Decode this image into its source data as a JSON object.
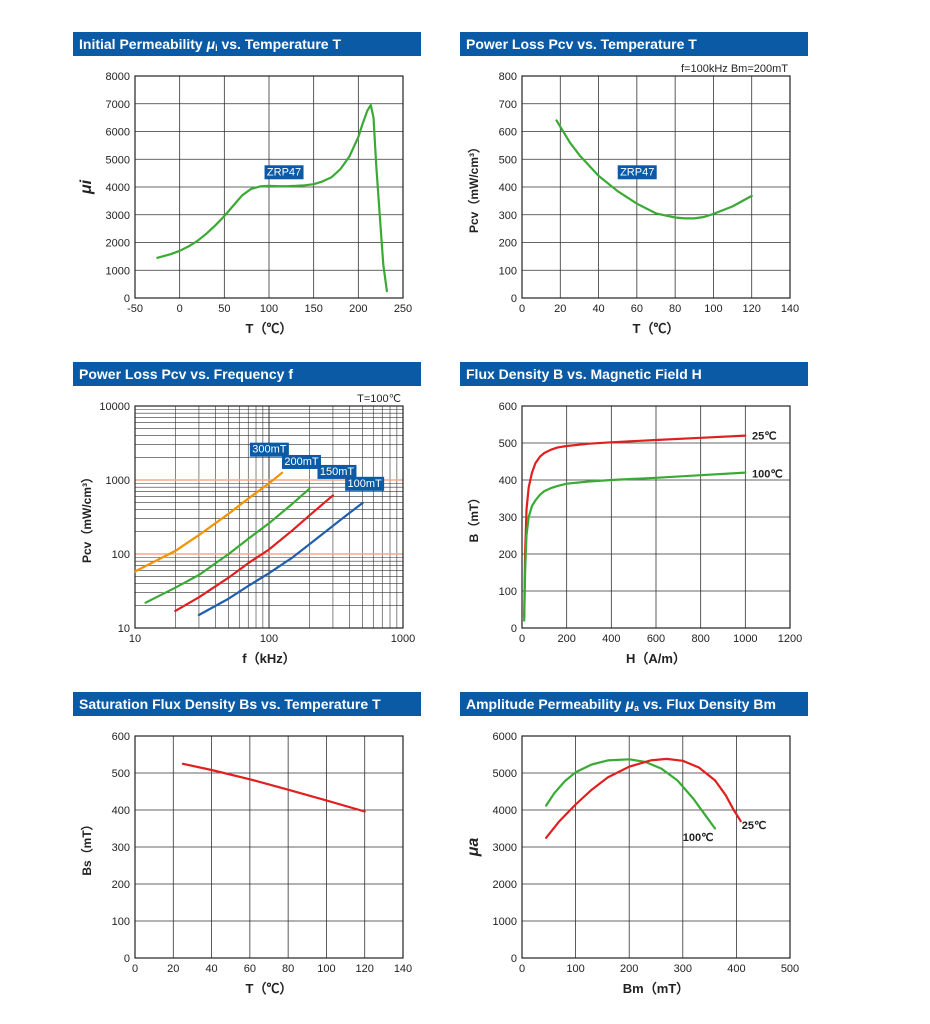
{
  "colors": {
    "header_bg": "#0a5aa6",
    "green": "#3aaa35",
    "red": "#e02020",
    "orange": "#f39200",
    "blue": "#1f5fae",
    "grid": "#333333",
    "ref_line": "#f5a58a"
  },
  "chart_data": [
    {
      "id": "perm_temp",
      "type": "line",
      "title_parts": [
        {
          "text": "Initial Permeability ",
          "style": "normal"
        },
        {
          "text": "μ",
          "style": "italic-bold"
        },
        {
          "text": "i",
          "style": "sub"
        },
        {
          "text": " vs. Temperature ",
          "style": "normal"
        },
        {
          "text": "T",
          "style": "bold"
        }
      ],
      "xlabel": "T（℃）",
      "ylabel": "μi",
      "xlim": [
        -50,
        250
      ],
      "ylim": [
        0,
        8000
      ],
      "xticks": [
        -50,
        0,
        50,
        100,
        150,
        200,
        250
      ],
      "yticks": [
        0,
        1000,
        2000,
        3000,
        4000,
        5000,
        6000,
        7000,
        8000
      ],
      "grid": true,
      "series": [
        {
          "name": "ZRP47",
          "color": "#3aaa35",
          "x": [
            -25,
            -10,
            0,
            10,
            20,
            30,
            40,
            50,
            60,
            70,
            80,
            90,
            100,
            110,
            120,
            130,
            140,
            150,
            160,
            170,
            180,
            190,
            200,
            205,
            210,
            214,
            217,
            220,
            225,
            228,
            232
          ],
          "y": [
            1450,
            1580,
            1700,
            1860,
            2060,
            2320,
            2620,
            2950,
            3330,
            3700,
            3930,
            4020,
            4040,
            4030,
            4030,
            4040,
            4060,
            4100,
            4200,
            4350,
            4650,
            5100,
            5800,
            6300,
            6750,
            6950,
            6500,
            4800,
            2500,
            1200,
            250
          ]
        }
      ],
      "annotations": [
        {
          "text": "ZRP47",
          "x": 95,
          "y": 4350
        }
      ]
    },
    {
      "id": "loss_temp",
      "type": "line",
      "title_parts": [
        {
          "text": "Power Loss ",
          "style": "normal"
        },
        {
          "text": "Pcv",
          "style": "bold"
        },
        {
          "text": " vs. Temperature ",
          "style": "normal"
        },
        {
          "text": "T",
          "style": "bold"
        }
      ],
      "subtitle": "f=100kHz    Bm=200mT",
      "xlabel": "T（℃）",
      "ylabel": "Pcv（mW/cm³）",
      "xlim": [
        0,
        140
      ],
      "ylim": [
        0,
        800
      ],
      "xticks": [
        0,
        20,
        40,
        60,
        80,
        100,
        120,
        140
      ],
      "yticks": [
        0,
        100,
        200,
        300,
        400,
        500,
        600,
        700,
        800
      ],
      "grid": true,
      "series": [
        {
          "name": "ZRP47",
          "color": "#3aaa35",
          "x": [
            18,
            25,
            30,
            40,
            50,
            60,
            70,
            80,
            85,
            90,
            95,
            100,
            110,
            120
          ],
          "y": [
            640,
            560,
            515,
            440,
            385,
            340,
            305,
            290,
            287,
            287,
            292,
            303,
            330,
            368
          ]
        }
      ],
      "annotations": [
        {
          "text": "ZRP47",
          "x": 50,
          "y": 435
        }
      ]
    },
    {
      "id": "loss_freq",
      "type": "line",
      "log_x": true,
      "log_y": true,
      "title_parts": [
        {
          "text": "Power Loss ",
          "style": "normal"
        },
        {
          "text": "Pcv",
          "style": "bold"
        },
        {
          "text": " vs. Frequency ",
          "style": "normal"
        },
        {
          "text": "f",
          "style": "bold"
        }
      ],
      "subtitle": "T=100℃",
      "xlabel_parts": [
        {
          "text": "f",
          "style": "bold"
        },
        {
          "text": "（kHz）",
          "style": "normal"
        }
      ],
      "ylabel": "Pcv（mW/cm³）",
      "xlim": [
        10,
        1000
      ],
      "ylim": [
        10,
        10000
      ],
      "xticks": [
        10,
        100,
        1000
      ],
      "yticks": [
        10,
        100,
        1000,
        10000
      ],
      "reference_lines_y": [
        100,
        1000
      ],
      "grid": true,
      "series": [
        {
          "name": "300mT",
          "color": "#f39200",
          "x": [
            10,
            20,
            30,
            50,
            70,
            100,
            125
          ],
          "y": [
            58,
            110,
            180,
            350,
            560,
            900,
            1250
          ]
        },
        {
          "name": "200mT",
          "color": "#3aaa35",
          "x": [
            12,
            20,
            30,
            50,
            70,
            100,
            150,
            200
          ],
          "y": [
            22,
            35,
            52,
            100,
            160,
            260,
            480,
            760
          ]
        },
        {
          "name": "150mT",
          "color": "#e02020",
          "x": [
            20,
            30,
            50,
            70,
            100,
            150,
            200,
            300
          ],
          "y": [
            17,
            26,
            48,
            75,
            115,
            210,
            330,
            620
          ]
        },
        {
          "name": "100mT",
          "color": "#1f5fae",
          "x": [
            30,
            50,
            70,
            100,
            150,
            200,
            300,
            400,
            500
          ],
          "y": [
            15,
            25,
            37,
            55,
            90,
            135,
            240,
            360,
            490
          ]
        }
      ],
      "annotations": [
        {
          "text": "300mT",
          "x": 72,
          "y": 2200
        },
        {
          "text": "200mT",
          "x": 125,
          "y": 1500
        },
        {
          "text": "150mT",
          "x": 230,
          "y": 1100
        },
        {
          "text": "100mT",
          "x": 370,
          "y": 760
        }
      ]
    },
    {
      "id": "flux_field",
      "type": "line",
      "title_parts": [
        {
          "text": "Flux Density ",
          "style": "normal"
        },
        {
          "text": "B",
          "style": "bold"
        },
        {
          "text": " vs. Magnetic Field ",
          "style": "normal"
        },
        {
          "text": "H",
          "style": "bold"
        }
      ],
      "xlabel": "H（A/m）",
      "ylabel": "B（mT）",
      "xlim": [
        0,
        1200
      ],
      "ylim": [
        0,
        600
      ],
      "xticks": [
        0,
        200,
        400,
        600,
        800,
        1000,
        1200
      ],
      "yticks": [
        0,
        100,
        200,
        300,
        400,
        500,
        600
      ],
      "grid": true,
      "series": [
        {
          "name": "25℃",
          "color": "#e02020",
          "x": [
            10,
            14,
            20,
            30,
            45,
            60,
            80,
            100,
            130,
            160,
            200,
            300,
            400,
            600,
            800,
            1000
          ],
          "y": [
            30,
            200,
            320,
            380,
            420,
            445,
            463,
            473,
            482,
            488,
            492,
            498,
            502,
            508,
            514,
            520
          ]
        },
        {
          "name": "100℃",
          "color": "#3aaa35",
          "x": [
            10,
            14,
            20,
            30,
            45,
            60,
            80,
            100,
            130,
            160,
            200,
            300,
            400,
            600,
            800,
            1000
          ],
          "y": [
            20,
            150,
            250,
            300,
            330,
            345,
            360,
            370,
            378,
            384,
            390,
            396,
            400,
            406,
            413,
            420
          ]
        }
      ],
      "annotations": [
        {
          "text": "25℃",
          "x": 1030,
          "y": 520
        },
        {
          "text": "100℃",
          "x": 1030,
          "y": 418
        }
      ]
    },
    {
      "id": "bs_temp",
      "type": "line",
      "title_parts": [
        {
          "text": "Saturation Flux Density ",
          "style": "normal"
        },
        {
          "text": "Bs",
          "style": "bold"
        },
        {
          "text": " vs. Temperature ",
          "style": "normal"
        },
        {
          "text": "T",
          "style": "bold"
        }
      ],
      "xlabel": "T（℃）",
      "ylabel": "Bs（mT）",
      "xlim": [
        0,
        140
      ],
      "ylim": [
        0,
        600
      ],
      "xticks": [
        0,
        20,
        40,
        60,
        80,
        100,
        120,
        140
      ],
      "yticks": [
        0,
        100,
        200,
        300,
        400,
        500,
        600
      ],
      "grid": true,
      "series": [
        {
          "name": "Bs",
          "color": "#e02020",
          "x": [
            25,
            40,
            60,
            80,
            100,
            120
          ],
          "y": [
            525,
            508,
            483,
            455,
            426,
            396
          ]
        }
      ],
      "annotations": []
    },
    {
      "id": "amp_perm",
      "type": "line",
      "title_parts": [
        {
          "text": "Amplitude Permeability ",
          "style": "normal"
        },
        {
          "text": "μ",
          "style": "italic-bold"
        },
        {
          "text": "a",
          "style": "sub"
        },
        {
          "text": " vs. Flux Density ",
          "style": "normal"
        },
        {
          "text": "Bm",
          "style": "bold"
        }
      ],
      "xlabel": "Bm（mT）",
      "ylabel": "μa",
      "xlim": [
        0,
        500
      ],
      "ylim": [
        0,
        6000
      ],
      "xticks": [
        0,
        100,
        200,
        300,
        400,
        500
      ],
      "yticks": [
        0,
        1000,
        2000,
        3000,
        4000,
        5000,
        6000
      ],
      "grid": true,
      "series": [
        {
          "name": "100℃",
          "color": "#3aaa35",
          "x": [
            45,
            60,
            80,
            100,
            130,
            160,
            200,
            230,
            260,
            290,
            320,
            340,
            360
          ],
          "y": [
            4120,
            4450,
            4780,
            5020,
            5230,
            5340,
            5370,
            5300,
            5120,
            4800,
            4300,
            3900,
            3500
          ]
        },
        {
          "name": "25℃",
          "color": "#e02020",
          "x": [
            45,
            70,
            100,
            130,
            160,
            200,
            240,
            270,
            300,
            330,
            360,
            380,
            395,
            408
          ],
          "y": [
            3250,
            3700,
            4150,
            4550,
            4880,
            5170,
            5340,
            5380,
            5330,
            5150,
            4800,
            4400,
            4000,
            3700
          ]
        }
      ],
      "annotations": [
        {
          "text": "100℃",
          "x": 300,
          "y": 3270
        },
        {
          "text": "25℃",
          "x": 410,
          "y": 3600
        }
      ]
    }
  ]
}
